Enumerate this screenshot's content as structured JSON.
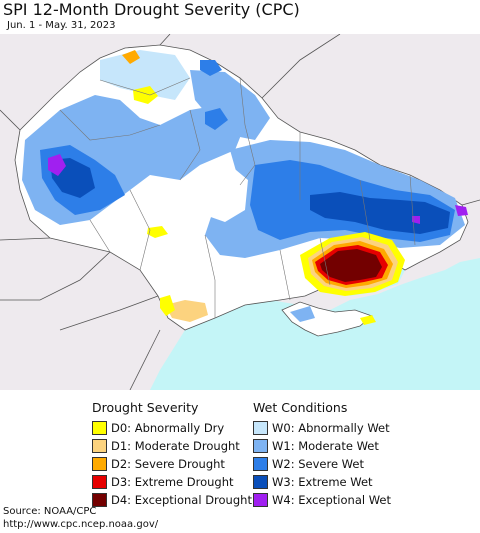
{
  "title": "SPI 12-Month Drought Severity (CPC)",
  "date_range": "Jun. 1 - May. 31, 2023",
  "legend": {
    "drought": {
      "heading": "Drought Severity",
      "items": [
        {
          "label": "D0: Abnormally Dry",
          "color": "#ffff00"
        },
        {
          "label": "D1: Moderate Drought",
          "color": "#fcd37f"
        },
        {
          "label": "D2: Severe Drought",
          "color": "#ffaa00"
        },
        {
          "label": "D3: Extreme Drought",
          "color": "#e60000"
        },
        {
          "label": "D4: Exceptional Drought",
          "color": "#730000"
        }
      ]
    },
    "wet": {
      "heading": "Wet Conditions",
      "items": [
        {
          "label": "W0: Abnormally Wet",
          "color": "#c6e6fb"
        },
        {
          "label": "W1: Moderate Wet",
          "color": "#7eb3f2"
        },
        {
          "label": "W2: Severe Wet",
          "color": "#2d7ee8"
        },
        {
          "label": "W3: Extreme Wet",
          "color": "#0a4fba"
        },
        {
          "label": "W4: Exceptional Wet",
          "color": "#a020f0"
        }
      ]
    }
  },
  "source": {
    "line1": "Source: NOAA/CPC",
    "line2": "http://www.cpc.ncep.noaa.gov/"
  },
  "colors": {
    "sea": "#c4f5f7",
    "outside_land": "#eeeaee",
    "land": "#ffffff",
    "border": "#555555"
  }
}
